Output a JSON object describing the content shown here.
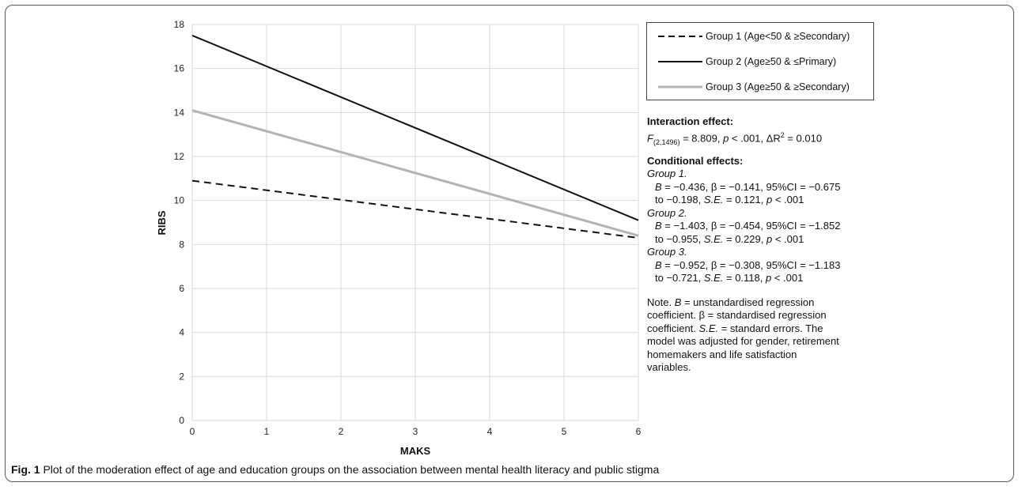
{
  "chart_data": {
    "type": "line",
    "xlabel": "MAKS",
    "ylabel": "RIBS",
    "xlim": [
      0,
      6
    ],
    "ylim": [
      0,
      18
    ],
    "xticks": [
      0,
      1,
      2,
      3,
      4,
      5,
      6
    ],
    "yticks": [
      0,
      2,
      4,
      6,
      8,
      10,
      12,
      14,
      16,
      18
    ],
    "grid": true,
    "legend_position": "right",
    "series": [
      {
        "name": "Group 1 (Age<50 & ≥Secondary)",
        "x": [
          0,
          6
        ],
        "y": [
          10.9,
          8.3
        ],
        "color": "#111111",
        "style": "dashed"
      },
      {
        "name": "Group 2 (Age≥50 & ≤Primary)",
        "x": [
          0,
          6
        ],
        "y": [
          17.5,
          9.1
        ],
        "color": "#111111",
        "style": "solid"
      },
      {
        "name": "Group 3 (Age≥50 & ≥Secondary)",
        "x": [
          0,
          6
        ],
        "y": [
          14.1,
          8.4
        ],
        "color": "#b3b3b3",
        "style": "solid"
      }
    ]
  },
  "notes": {
    "interaction_heading": "Interaction effect:",
    "interaction_F": "F",
    "interaction_sub": "(2,1496)",
    "interaction_rest1": " = 8.809, ",
    "interaction_p": "p",
    "interaction_rest2": " < .001, ΔR",
    "interaction_sup": "2",
    "interaction_rest3": " = 0.010",
    "conditional_heading": "Conditional effects:",
    "groups": [
      {
        "label": "Group 1.",
        "B": "B",
        "line1": " = −0.436, β = −0.141, 95%CI = −0.675",
        "line2a": "to −0.198, ",
        "SE": "S.E.",
        "line2b": " = 0.121, ",
        "p": "p",
        "line2c": " < .001"
      },
      {
        "label": "Group 2.",
        "B": "B",
        "line1": " = −1.403, β = −0.454, 95%CI = −1.852",
        "line2a": "to −0.955, ",
        "SE": "S.E.",
        "line2b": " = 0.229, ",
        "p": "p",
        "line2c": " < .001"
      },
      {
        "label": "Group 3.",
        "B": "B",
        "line1": " = −0.952, β = −0.308, 95%CI = −1.183",
        "line2a": "to −0.721, ",
        "SE": "S.E.",
        "line2b": " = 0.118, ",
        "p": "p",
        "line2c": " < .001"
      }
    ],
    "note_a": "Note. ",
    "note_B": "B",
    "note_b": " = unstandardised regression coefficient. β = standardised regression coefficient. ",
    "note_SE": "S.E.",
    "note_c": " = standard errors. The model was adjusted for gender, retirement homemakers and life satisfaction variables."
  },
  "caption": {
    "label": "Fig. 1",
    "text": " Plot of the moderation effect of age and education groups on the association between mental health literacy and public stigma"
  }
}
